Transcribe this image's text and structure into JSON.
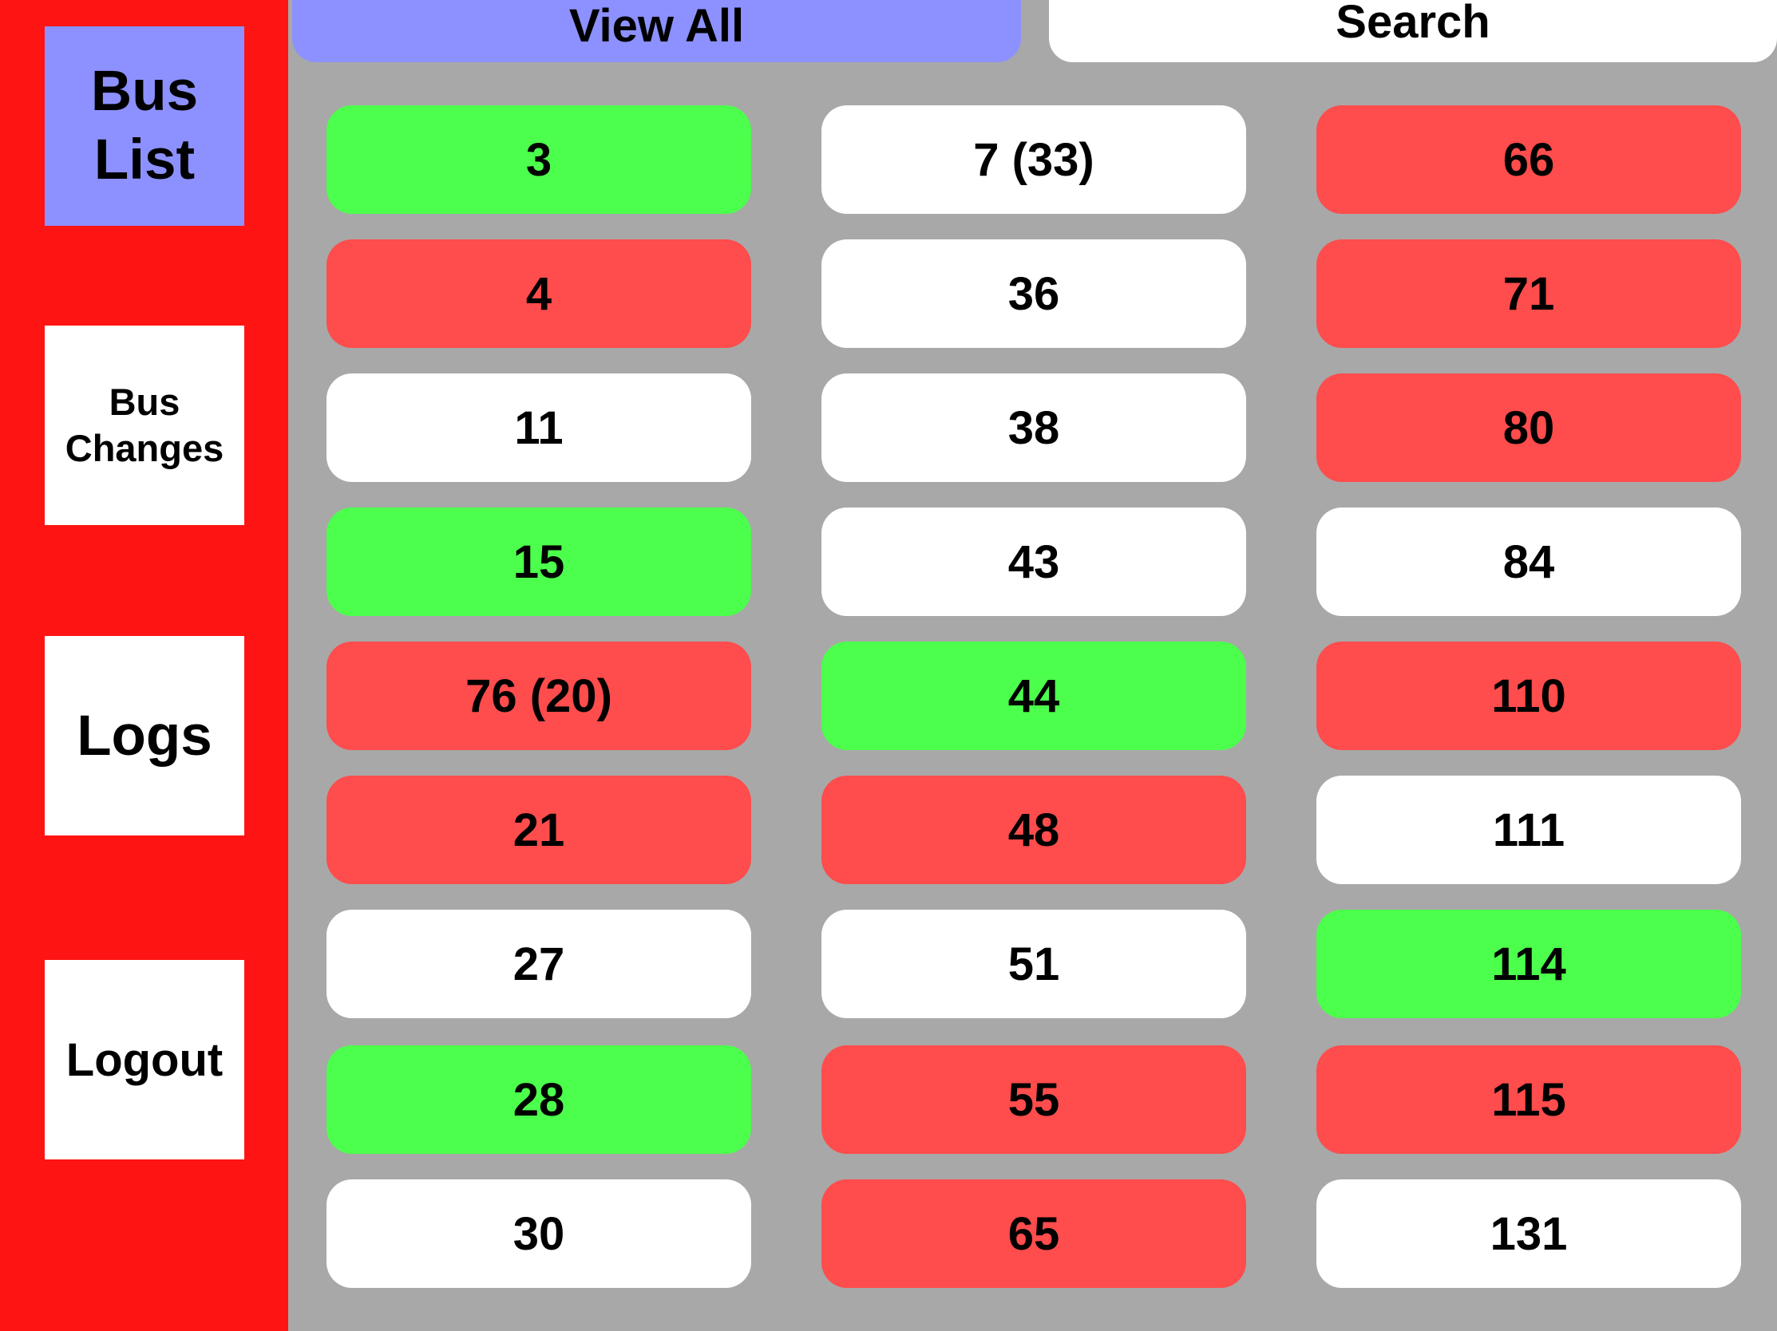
{
  "colors": {
    "sidebar_bg": "#ff1414",
    "content_bg": "#a8a8a8",
    "active_accent": "#8c91ff",
    "status_green": "#4cff4c",
    "status_red": "#ff4c4c",
    "status_white": "#ffffff"
  },
  "sidebar": {
    "bus_list": "Bus List",
    "bus_changes": "Bus Changes",
    "logs": "Logs",
    "logout": "Logout"
  },
  "tabs": {
    "view_all": "View All",
    "search": "Search"
  },
  "bus_grid": {
    "columns": [
      [
        {
          "label": "3",
          "status": "green"
        },
        {
          "label": "4",
          "status": "red"
        },
        {
          "label": "11",
          "status": "white"
        },
        {
          "label": "15",
          "status": "green"
        },
        {
          "label": "76 (20)",
          "status": "red"
        },
        {
          "label": "21",
          "status": "red"
        },
        {
          "label": "27",
          "status": "white"
        },
        {
          "label": "28",
          "status": "green"
        },
        {
          "label": "30",
          "status": "white"
        }
      ],
      [
        {
          "label": "7 (33)",
          "status": "white"
        },
        {
          "label": "36",
          "status": "white"
        },
        {
          "label": "38",
          "status": "white"
        },
        {
          "label": "43",
          "status": "white"
        },
        {
          "label": "44",
          "status": "green"
        },
        {
          "label": "48",
          "status": "red"
        },
        {
          "label": "51",
          "status": "white"
        },
        {
          "label": "55",
          "status": "red"
        },
        {
          "label": "65",
          "status": "red"
        }
      ],
      [
        {
          "label": "66",
          "status": "red"
        },
        {
          "label": "71",
          "status": "red"
        },
        {
          "label": "80",
          "status": "red"
        },
        {
          "label": "84",
          "status": "white"
        },
        {
          "label": "110",
          "status": "red"
        },
        {
          "label": "111",
          "status": "white"
        },
        {
          "label": "114",
          "status": "green"
        },
        {
          "label": "115",
          "status": "red"
        },
        {
          "label": "131",
          "status": "white"
        }
      ]
    ]
  }
}
